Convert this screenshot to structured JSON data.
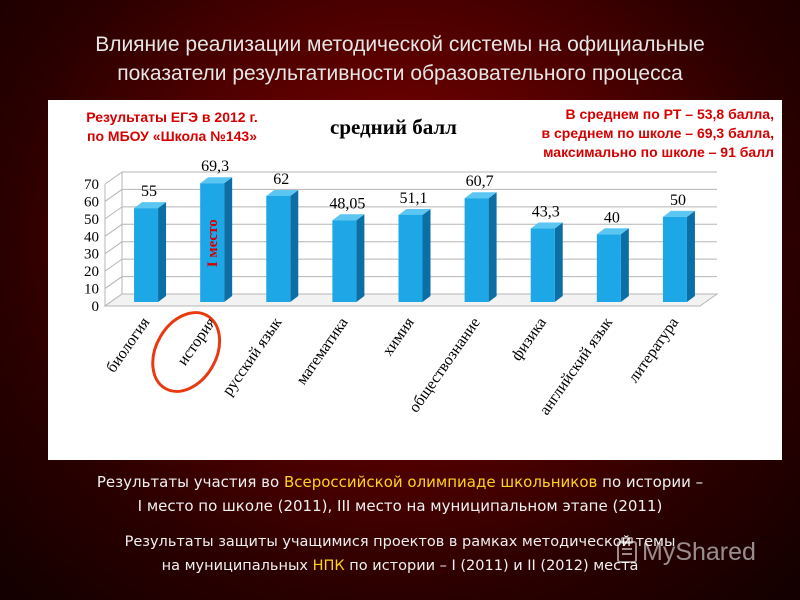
{
  "slide": {
    "title_line1": "Влияние реализации методической системы на официальные",
    "title_line2": "показатели результативности образовательного процесса",
    "info_left_line1": "Результаты ЕГЭ в 2012 г.",
    "info_left_line2": "по МБОУ «Школа №143»",
    "info_right_line1": "В среднем по РТ – 53,8 балла,",
    "info_right_line2": "в среднем по школе – 69,3 балла,",
    "info_right_line3": "максимально по школе – 91 балл",
    "olymp_prefix": "Результаты участия во ",
    "olymp_highlight": "Всероссийской олимпиаде школьников",
    "olymp_suffix": " по истории –",
    "olymp_line2": "I место по школе (2011), III место на муниципальном этапе (2011)",
    "npk_line1": "Результаты защиты учащимися проектов в рамках методической темы",
    "npk_prefix": "на муниципальных ",
    "npk_highlight": "НПК",
    "npk_suffix": " по истории – I (2011) и II (2012) места",
    "watermark": "MyShared"
  },
  "chart_data": {
    "type": "bar",
    "title": "средний балл",
    "categories": [
      "биология",
      "история",
      "русский язык",
      "математика",
      "химия",
      "обществознание",
      "физика",
      "английский язык",
      "литература"
    ],
    "values": [
      55,
      69.3,
      62,
      48.05,
      51.1,
      60.7,
      43.3,
      40,
      50
    ],
    "value_labels": [
      "55",
      "69,3",
      "62",
      "48,05",
      "51,1",
      "60,7",
      "43,3",
      "40",
      "50"
    ],
    "ylim": [
      0,
      70
    ],
    "yticks": [
      0,
      10,
      20,
      30,
      40,
      50,
      60,
      70
    ],
    "grid": true,
    "annotation": "I место",
    "highlighted_category": "история",
    "colors": {
      "bar": "#1ea7e6",
      "bar_dark": "#0b6fa6",
      "bar_top": "#5cc6f2",
      "annotation": "#d60000",
      "circle": "#e83a10",
      "highlight_text": "#ffd21a",
      "info_text": "#d60000"
    }
  }
}
